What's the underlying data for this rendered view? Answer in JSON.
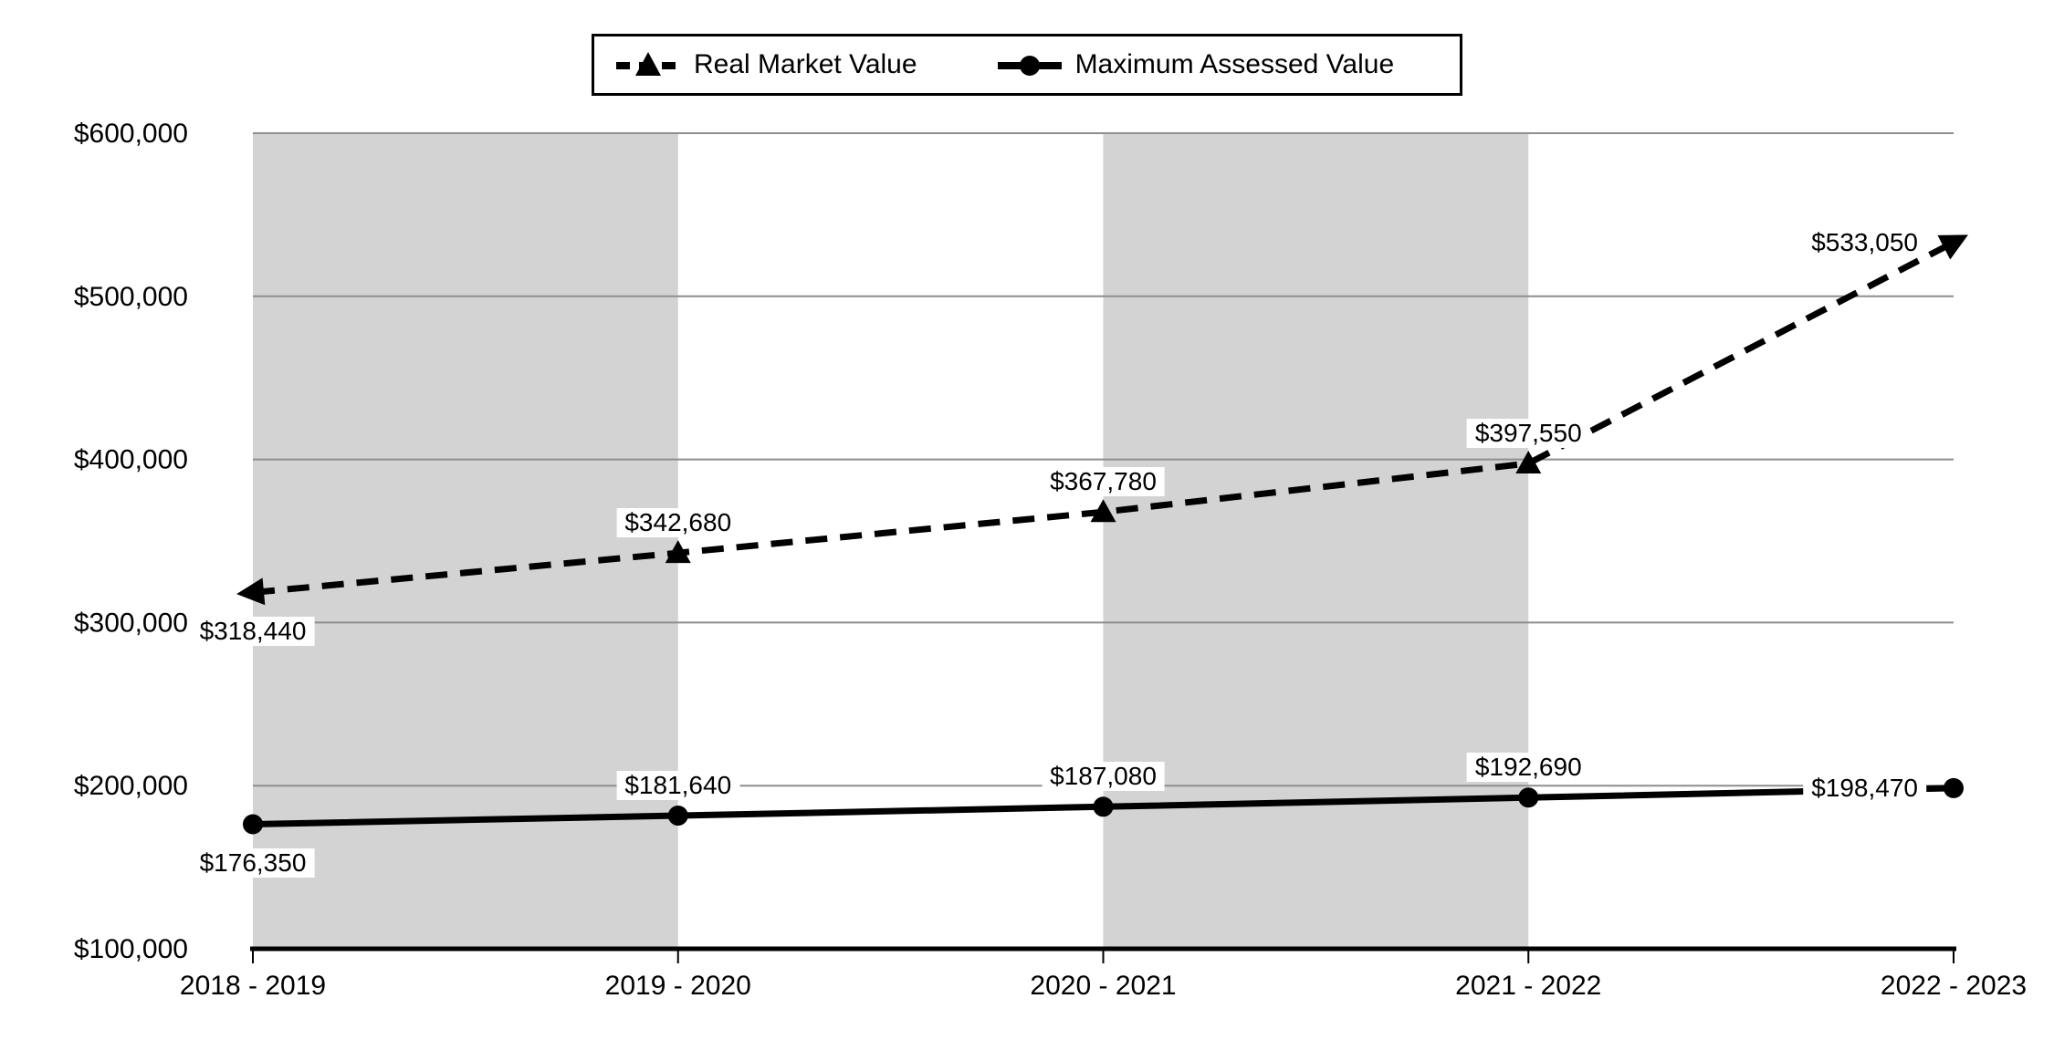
{
  "chart_data": {
    "type": "line",
    "title": "",
    "categories": [
      "2018 - 2019",
      "2019 - 2020",
      "2020 - 2021",
      "2021 - 2022",
      "2022 - 2023"
    ],
    "series": [
      {
        "name": "Real Market Value",
        "line_style": "dashed",
        "marker": "triangle",
        "marker_shapes": [
          "arrow-start",
          "triangle",
          "triangle",
          "triangle",
          "arrow-end"
        ],
        "values": [
          318440,
          342680,
          367780,
          397550,
          533050
        ],
        "labels": [
          "$318,440",
          "$342,680",
          "$367,780",
          "$397,550",
          "$533,050"
        ],
        "label_placements": [
          "below",
          "above",
          "above",
          "above",
          "left"
        ]
      },
      {
        "name": "Maximum Assessed Value",
        "line_style": "solid",
        "marker": "circle",
        "marker_shapes": [
          "circle",
          "circle",
          "circle",
          "circle",
          "circle"
        ],
        "values": [
          176350,
          181640,
          187080,
          192690,
          198470
        ],
        "labels": [
          "$176,350",
          "$181,640",
          "$187,080",
          "$192,690",
          "$198,470"
        ],
        "label_placements": [
          "below",
          "above",
          "above",
          "above",
          "left"
        ]
      }
    ],
    "xlabel": "",
    "ylabel": "",
    "y_axis": {
      "min": 100000,
      "max": 600000,
      "step": 100000,
      "tick_labels": [
        "$100,000",
        "$200,000",
        "$300,000",
        "$400,000",
        "$500,000",
        "$600,000"
      ]
    },
    "grid": true,
    "legend_position": "top-center",
    "plot_bands": {
      "description": "alternating gray column bands between category points",
      "band_category_spans": [
        [
          0,
          1
        ],
        [
          2,
          3
        ]
      ]
    },
    "colors": {
      "series_line": "#000000",
      "gridline": "#8e8e8e",
      "axis_line": "#000000",
      "band_fill": "#d3d3d3",
      "label_background": "#ffffff",
      "text": "#000000",
      "background": "#ffffff"
    }
  }
}
